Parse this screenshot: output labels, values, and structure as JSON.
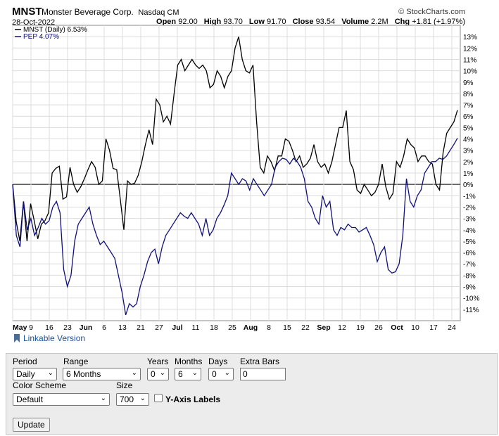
{
  "header": {
    "symbol": "MNST",
    "company": "Monster Beverage Corp.",
    "exchange": "Nasdaq CM",
    "copyright": "© StockCharts.com",
    "date": "28-Oct-2022",
    "open_label": "Open",
    "open": "92.00",
    "high_label": "High",
    "high": "93.70",
    "low_label": "Low",
    "low": "91.70",
    "close_label": "Close",
    "close": "93.54",
    "volume_label": "Volume",
    "volume": "2.2M",
    "chg_label": "Chg",
    "chg": "+1.81 (+1.97%)"
  },
  "chart_data": {
    "type": "line",
    "ylim": [
      -12,
      14
    ],
    "y_ticks": [
      13,
      12,
      11,
      10,
      9,
      8,
      7,
      6,
      5,
      4,
      3,
      2,
      1,
      0,
      -1,
      -2,
      -3,
      -4,
      -5,
      -6,
      -7,
      -8,
      -9,
      -10,
      -11
    ],
    "y_tick_suffix": "%",
    "x_labels": [
      {
        "text": "May",
        "bold": true
      },
      {
        "text": "9"
      },
      {
        "text": "16"
      },
      {
        "text": "23"
      },
      {
        "text": "Jun",
        "bold": true
      },
      {
        "text": "6"
      },
      {
        "text": "13"
      },
      {
        "text": "21"
      },
      {
        "text": "27"
      },
      {
        "text": "Jul",
        "bold": true
      },
      {
        "text": "11"
      },
      {
        "text": "18"
      },
      {
        "text": "25"
      },
      {
        "text": "Aug",
        "bold": true
      },
      {
        "text": "8"
      },
      {
        "text": "15"
      },
      {
        "text": "22"
      },
      {
        "text": "Sep",
        "bold": true
      },
      {
        "text": "12"
      },
      {
        "text": "19"
      },
      {
        "text": "26"
      },
      {
        "text": "Oct",
        "bold": true
      },
      {
        "text": "10"
      },
      {
        "text": "17"
      },
      {
        "text": "24"
      }
    ],
    "series": [
      {
        "name": "MNST (Daily) 6.53%",
        "color": "#000000",
        "values": [
          0.0,
          -3.3,
          -5.0,
          -1.5,
          -5.0,
          -1.7,
          -3.2,
          -4.8,
          -3.5,
          -3.2,
          -2.5,
          1.0,
          1.4,
          1.6,
          -1.3,
          -1.1,
          1.5,
          0.0,
          -0.7,
          -0.2,
          0.5,
          1.3,
          2.0,
          1.5,
          0.0,
          0.3,
          4.0,
          3.0,
          1.4,
          1.3,
          -1.3,
          -4.0,
          0.3,
          0.0,
          0.1,
          0.8,
          2.0,
          3.5,
          4.8,
          3.5,
          7.5,
          7.0,
          5.5,
          6.0,
          5.3,
          8.0,
          10.5,
          11.0,
          10.0,
          10.5,
          11.0,
          10.5,
          10.2,
          10.5,
          10.0,
          8.5,
          8.8,
          10.0,
          9.5,
          8.5,
          9.5,
          10.0,
          12.0,
          13.0,
          11.0,
          10.0,
          9.8,
          10.5,
          5.5,
          1.5,
          1.0,
          2.5,
          2.0,
          1.2,
          2.5,
          2.5,
          4.0,
          3.8,
          3.0,
          2.0,
          2.5,
          1.5,
          1.8,
          2.3,
          3.5,
          2.0,
          1.5,
          1.8,
          1.0,
          2.0,
          3.5,
          5.0,
          5.0,
          6.5,
          2.0,
          1.3,
          -0.5,
          -0.8,
          0.0,
          -0.5,
          -1.0,
          -0.7,
          0.0,
          1.8,
          -0.2,
          -1.3,
          -0.8,
          2.0,
          1.5,
          2.5,
          4.0,
          3.5,
          3.2,
          2.0,
          2.5,
          2.5,
          2.0,
          1.8,
          0.0,
          -0.5,
          2.8,
          4.5,
          5.0,
          5.5,
          6.53
        ]
      },
      {
        "name": "PEP 4.07%",
        "color": "#10107a",
        "values": [
          0.0,
          -4.5,
          -5.5,
          -1.5,
          -4.0,
          -3.0,
          -4.5,
          -3.8,
          -3.0,
          -3.5,
          -3.2,
          -2.0,
          -1.5,
          -2.5,
          -7.5,
          -9.0,
          -8.0,
          -5.0,
          -3.5,
          -3.0,
          -2.5,
          -2.0,
          -3.5,
          -4.5,
          -5.3,
          -5.0,
          -5.5,
          -6.0,
          -6.5,
          -8.0,
          -9.5,
          -11.5,
          -10.5,
          -10.8,
          -10.5,
          -9.0,
          -8.0,
          -6.8,
          -6.0,
          -5.7,
          -7.0,
          -5.5,
          -4.5,
          -4.0,
          -3.5,
          -3.0,
          -2.5,
          -2.8,
          -3.0,
          -2.5,
          -3.0,
          -3.5,
          -4.5,
          -3.0,
          -4.5,
          -4.0,
          -3.0,
          -2.5,
          -1.8,
          -1.0,
          1.0,
          0.5,
          0.0,
          0.5,
          0.3,
          -0.5,
          0.5,
          0.0,
          -0.5,
          -1.0,
          -0.5,
          0.0,
          1.5,
          2.0,
          2.3,
          2.2,
          1.8,
          2.3,
          2.0,
          1.5,
          0.5,
          -1.5,
          -2.0,
          -3.0,
          -3.5,
          -1.0,
          -2.0,
          -1.5,
          -4.0,
          -4.5,
          -3.8,
          -4.0,
          -3.5,
          -3.8,
          -3.8,
          -4.2,
          -4.0,
          -3.8,
          -4.5,
          -5.3,
          -6.8,
          -6.0,
          -5.5,
          -7.5,
          -7.8,
          -7.7,
          -7.0,
          -4.5,
          0.5,
          -1.5,
          -2.0,
          -1.0,
          -0.5,
          1.0,
          1.5,
          2.0,
          2.0,
          2.3,
          2.2,
          2.5,
          3.0,
          3.5,
          4.07
        ]
      }
    ]
  },
  "linkable": "Linkable Version",
  "controls": {
    "period_label": "Period",
    "period_value": "Daily",
    "range_label": "Range",
    "range_value": "6 Months",
    "years_label": "Years",
    "years_value": "0",
    "months_label": "Months",
    "months_value": "6",
    "days_label": "Days",
    "days_value": "0",
    "extra_bars_label": "Extra Bars",
    "extra_bars_value": "0",
    "color_scheme_label": "Color Scheme",
    "color_scheme_value": "Default",
    "size_label": "Size",
    "size_value": "700",
    "yaxis_labels_label": "Y-Axis Labels",
    "update_label": "Update"
  }
}
